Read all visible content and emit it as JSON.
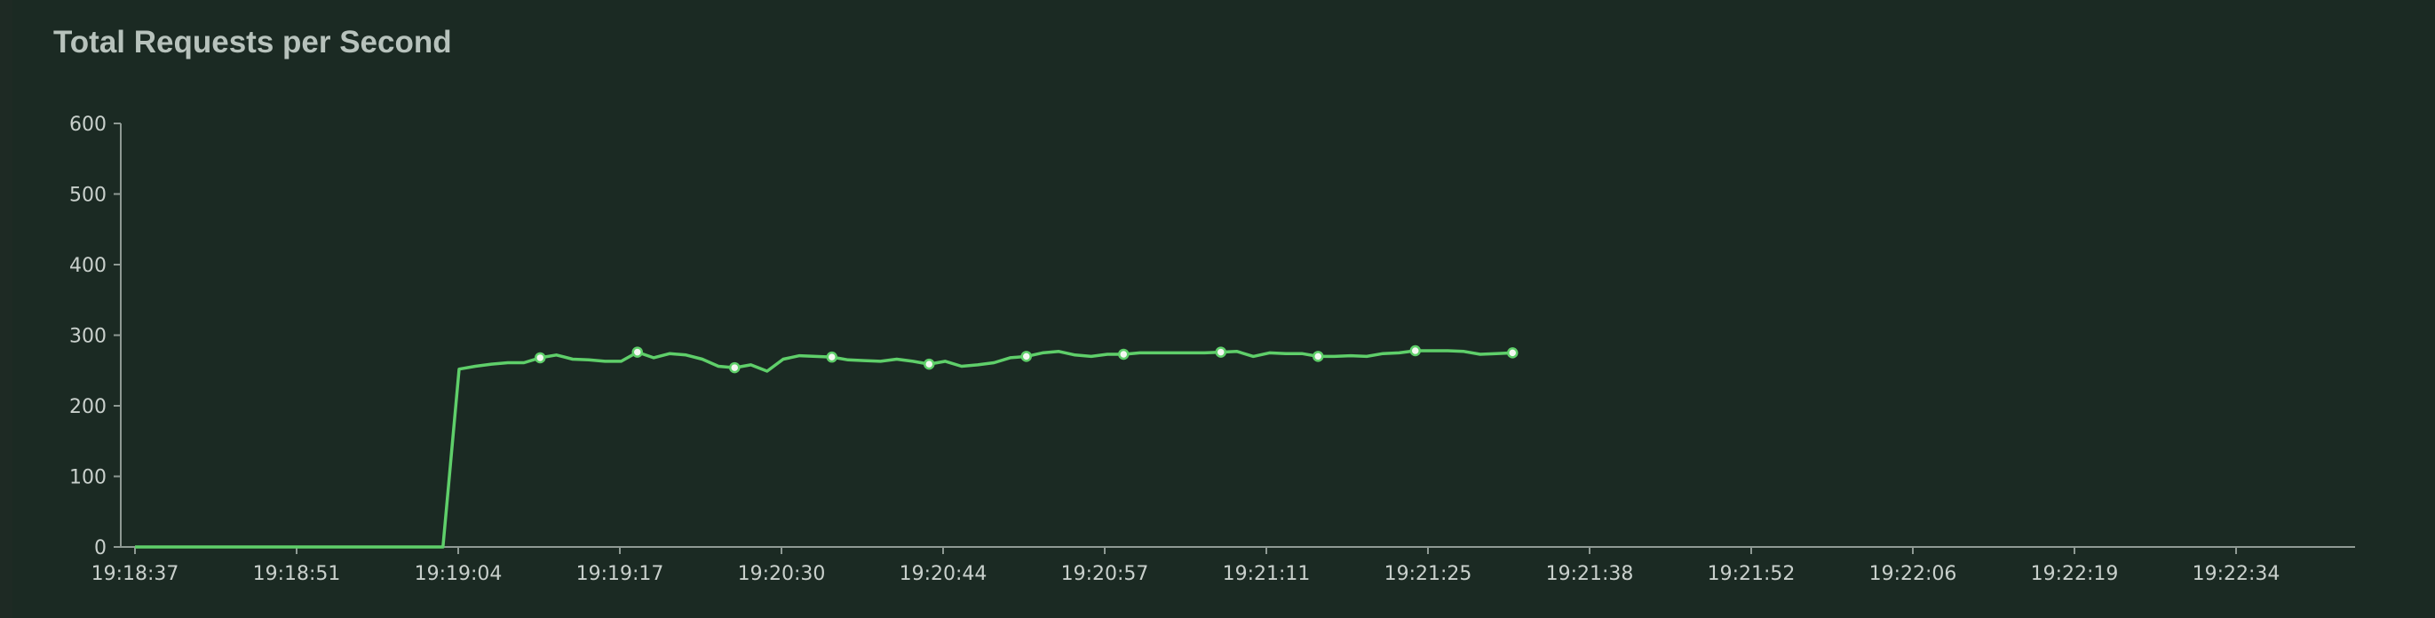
{
  "panel": {
    "title": "Total Requests per Second"
  },
  "colors": {
    "background": "#1b2a23",
    "line": "#5fcf6a",
    "axis": "#8f9a94",
    "text": "#c9d0cc"
  },
  "chart_data": {
    "type": "line",
    "title": "Total Requests per Second",
    "xlabel": "",
    "ylabel": "",
    "ylim": [
      0,
      600
    ],
    "y_ticks": [
      "0",
      "100",
      "200",
      "300",
      "400",
      "500",
      "600"
    ],
    "x_ticks": [
      "19:18:37",
      "19:18:51",
      "19:19:04",
      "19:19:17",
      "19:20:30",
      "19:20:44",
      "19:20:57",
      "19:21:11",
      "19:21:25",
      "19:21:38",
      "19:21:52",
      "19:22:06",
      "19:22:19",
      "19:22:34"
    ],
    "grid": false,
    "legend": "none",
    "series": [
      {
        "marker_every": 6,
        "marker_offset": 5,
        "values": [
          0,
          0,
          0,
          0,
          0,
          0,
          0,
          0,
          0,
          0,
          0,
          0,
          0,
          0,
          0,
          0,
          0,
          0,
          0,
          0,
          252,
          256,
          259,
          261,
          261,
          268,
          272,
          266,
          265,
          263,
          263,
          276,
          268,
          274,
          272,
          266,
          256,
          254,
          258,
          249,
          266,
          271,
          270,
          269,
          265,
          264,
          263,
          266,
          263,
          259,
          263,
          256,
          258,
          261,
          268,
          270,
          275,
          277,
          272,
          270,
          273,
          273,
          275,
          275,
          275,
          275,
          275,
          276,
          277,
          270,
          275,
          274,
          274,
          270,
          270,
          271,
          270,
          274,
          275,
          278,
          278,
          278,
          277,
          273,
          274,
          275
        ]
      }
    ]
  }
}
